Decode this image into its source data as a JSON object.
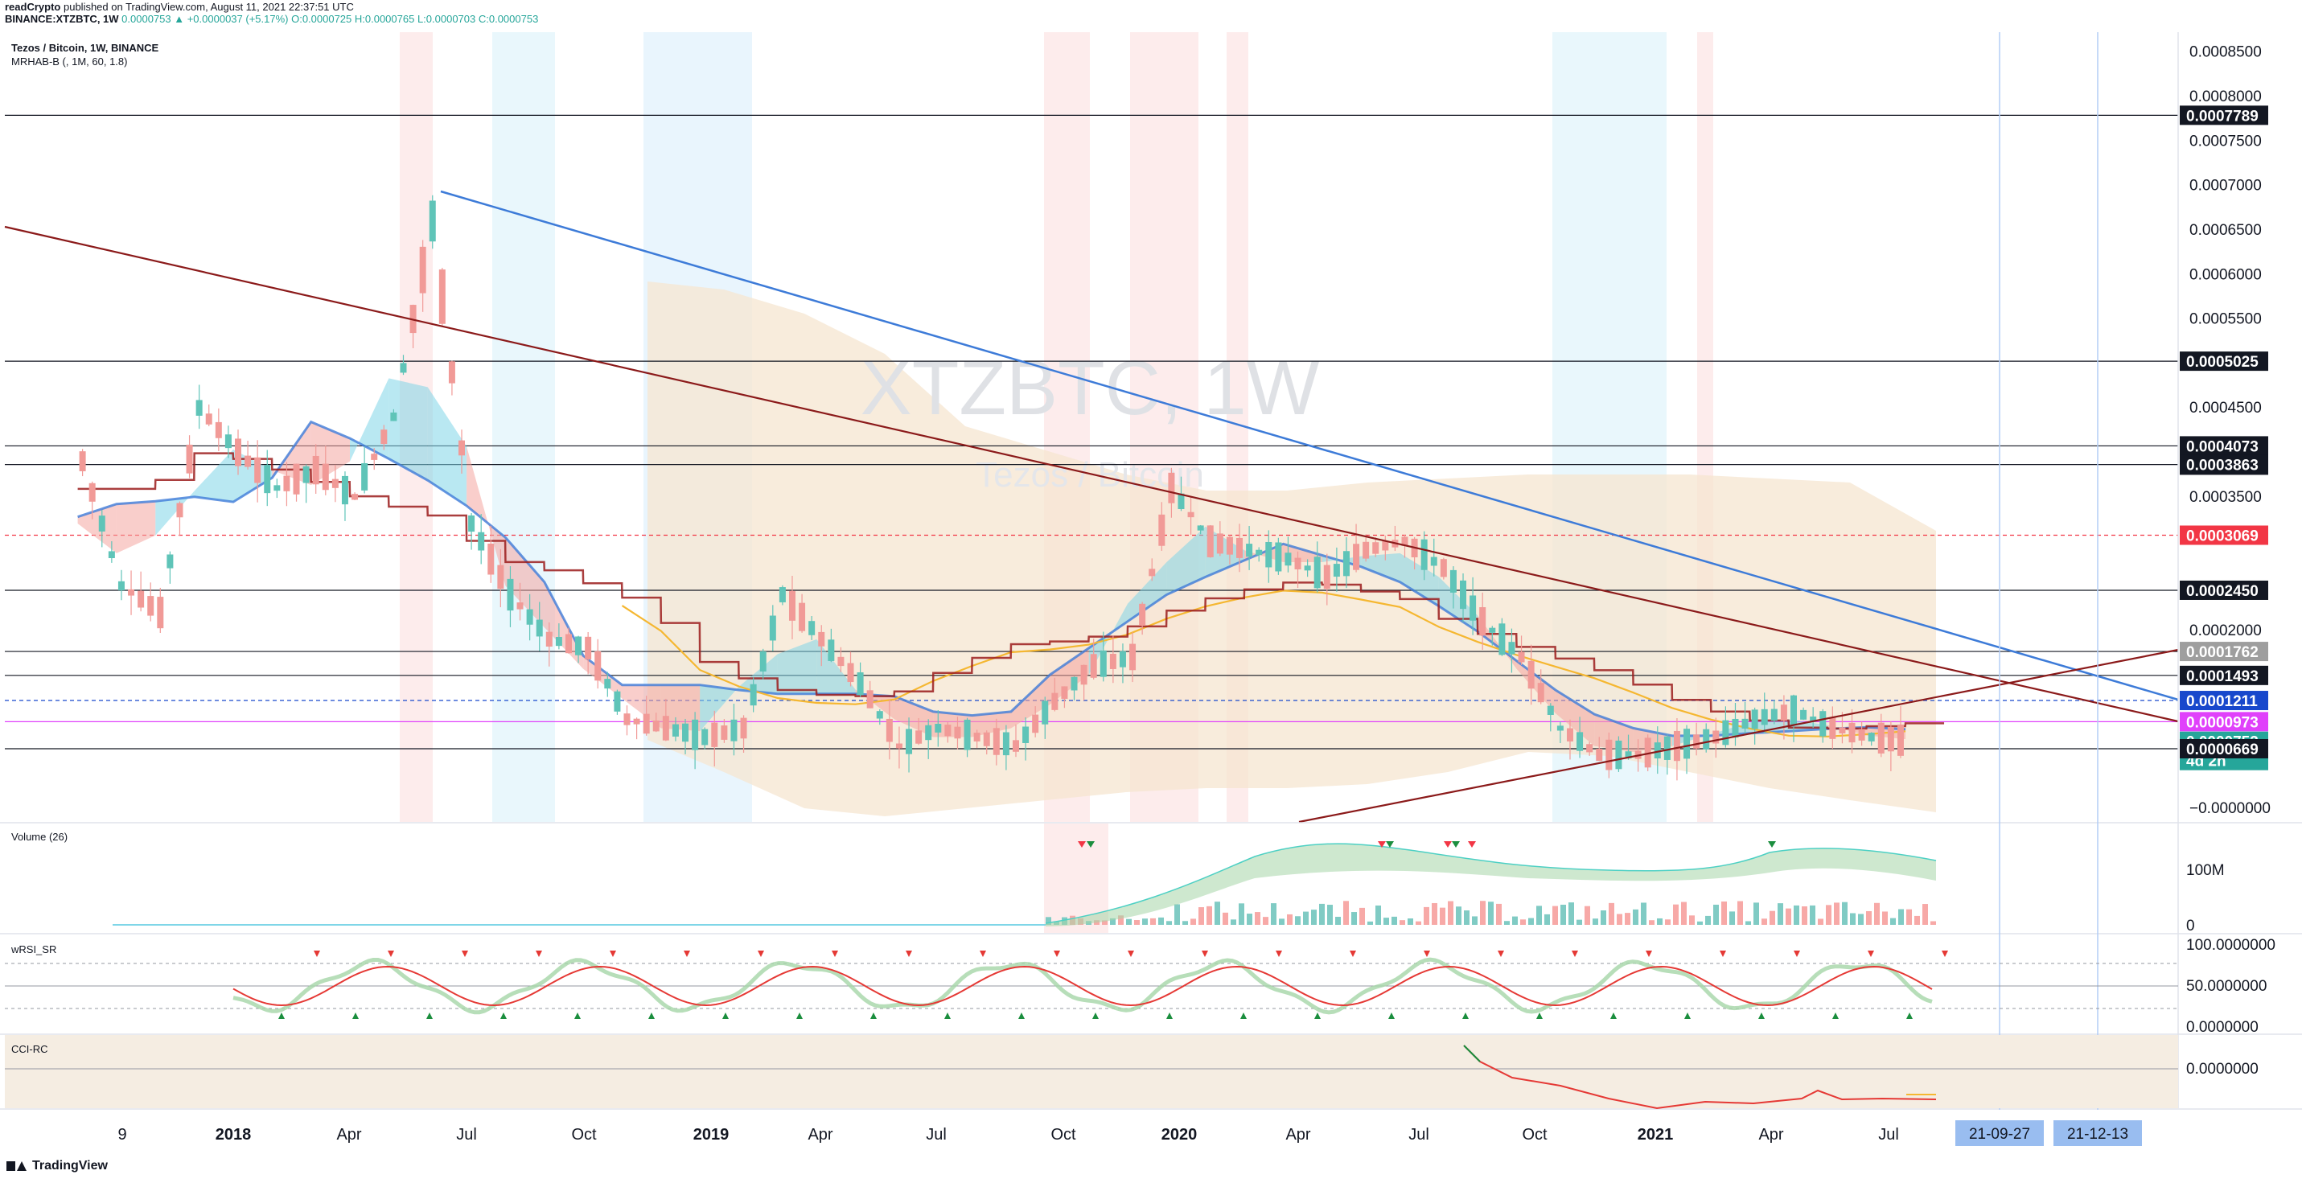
{
  "header": {
    "publisher": "readCrypto",
    "published_text": "published on TradingView.com, August 11, 2021 22:37:51 UTC",
    "symbol_line": "BINANCE:XTZBTC, 1W",
    "ohlc_line": "0.0000753 ▲ +0.0000037 (+5.17%) O:0.0000725 H:0.0000765 L:0.0000703 C:0.0000753"
  },
  "legend": {
    "title": "Tezos / Bitcoin, 1W, BINANCE",
    "indicator": "MRHAB-B (, 1M, 60, 1.8)"
  },
  "watermark": {
    "symbol": "XTZBTC, 1W",
    "name": "Tezos / Bitcoin"
  },
  "panes": {
    "volume": {
      "label": "Volume (26)",
      "ticks": [
        "100M",
        "0"
      ]
    },
    "wrsi": {
      "label": "wRSI_SR",
      "ticks": [
        "100.0000000",
        "50.0000000",
        "0.0000000"
      ]
    },
    "cci": {
      "label": "CCI-RC",
      "ticks": [
        "0.0000000"
      ]
    }
  },
  "price_axis": {
    "ticks": [
      "0.0008500",
      "0.0008000",
      "0.0007500",
      "0.0007000",
      "0.0006500",
      "0.0006000",
      "0.0005500",
      "0.0004500",
      "0.0003500",
      "0.0002000",
      "−0.0000000"
    ],
    "labels": [
      {
        "text": "0.0007789",
        "value": 0.0007789,
        "color": "#131722"
      },
      {
        "text": "0.0005025",
        "value": 0.0005025,
        "color": "#131722"
      },
      {
        "text": "0.0004073",
        "value": 0.0004073,
        "color": "#131722"
      },
      {
        "text": "0.0004073",
        "value": 0.0004073,
        "color": "#131722"
      },
      {
        "text": "0.0003863",
        "value": 0.0003863,
        "color": "#131722"
      },
      {
        "text": "0.0003069",
        "value": 0.0003069,
        "color": "#f23645"
      },
      {
        "text": "0.0002450",
        "value": 0.000245,
        "color": "#131722"
      },
      {
        "text": "0.0001762",
        "value": 0.0001762,
        "color": "#9e9e9e"
      },
      {
        "text": "0.0001493",
        "value": 0.0001493,
        "color": "#131722"
      },
      {
        "text": "0.0001211",
        "value": 0.0001211,
        "color": "#1848cc"
      },
      {
        "text": "0.0000973",
        "value": 9.73e-05,
        "color": "#e040fb"
      },
      {
        "text": "0.0000753",
        "value": 7.53e-05,
        "color": "#26a69a"
      },
      {
        "text": "4d 2h",
        "value": 7.53e-05,
        "color": "#26a69a"
      },
      {
        "text": "0.0000669",
        "value": 6.69e-05,
        "color": "#131722"
      }
    ]
  },
  "time_axis": {
    "ticks": [
      "9",
      "2018",
      "Apr",
      "Jul",
      "Oct",
      "2019",
      "Apr",
      "Jul",
      "Oct",
      "2020",
      "Apr",
      "Jul",
      "Oct",
      "2021",
      "Apr",
      "Jul"
    ],
    "date_labels": [
      "21-09-27",
      "21-12-13"
    ]
  },
  "brand": "TradingView",
  "colors": {
    "up": "#26a69a",
    "down": "#ef5350",
    "blue_trend": "#3d7bd8",
    "red_trend": "#8b1a1a",
    "band_fill": "#f5e6d0",
    "yellow": "#f5b731",
    "magenta": "#e040fb",
    "blue_dash": "#1848cc"
  },
  "chart_data": {
    "type": "candlestick",
    "title": "Tezos / Bitcoin, 1W, BINANCE",
    "x_range": [
      "2017-09",
      "2021-12"
    ],
    "ylim": [
      0,
      0.00085
    ],
    "horizontal_levels": [
      0.0007789,
      0.0005025,
      0.0004073,
      0.0003863,
      0.0003069,
      0.000245,
      0.0001762,
      0.0001493,
      0.0001211,
      9.73e-05,
      6.69e-05
    ],
    "close_path": {
      "x": [
        "2017-09",
        "2017-10",
        "2017-11",
        "2017-12",
        "2018-01",
        "2018-02",
        "2018-03",
        "2018-04",
        "2018-05",
        "2018-06",
        "2018-07",
        "2018-08",
        "2018-09",
        "2018-10",
        "2018-11",
        "2018-12",
        "2019-01",
        "2019-02",
        "2019-03",
        "2019-04",
        "2019-05",
        "2019-06",
        "2019-07",
        "2019-08",
        "2019-09",
        "2019-10",
        "2019-11",
        "2019-12",
        "2020-01",
        "2020-02",
        "2020-03",
        "2020-04",
        "2020-05",
        "2020-06",
        "2020-07",
        "2020-08",
        "2020-09",
        "2020-10",
        "2020-11",
        "2020-12",
        "2021-01",
        "2021-02",
        "2021-03",
        "2021-04",
        "2021-05",
        "2021-06",
        "2021-07",
        "2021-08"
      ],
      "y": [
        0.00039,
        0.00025,
        0.00022,
        0.00045,
        0.0004,
        0.00036,
        0.00038,
        0.00035,
        0.00044,
        0.00066,
        0.00032,
        0.00024,
        0.00019,
        0.00018,
        0.0001,
        9e-05,
        8e-05,
        9e-05,
        0.00024,
        0.00019,
        0.00014,
        7e-05,
        9e-05,
        8e-05,
        7e-05,
        0.00012,
        0.00016,
        0.00017,
        0.00036,
        0.0003,
        0.00029,
        0.00028,
        0.00026,
        0.00029,
        0.0003,
        0.00027,
        0.00021,
        0.00017,
        9e-05,
        6e-05,
        6e-05,
        7e-05,
        8e-05,
        0.0001,
        0.00011,
        9e-05,
        8e-05,
        7.53e-05
      ]
    }
  }
}
